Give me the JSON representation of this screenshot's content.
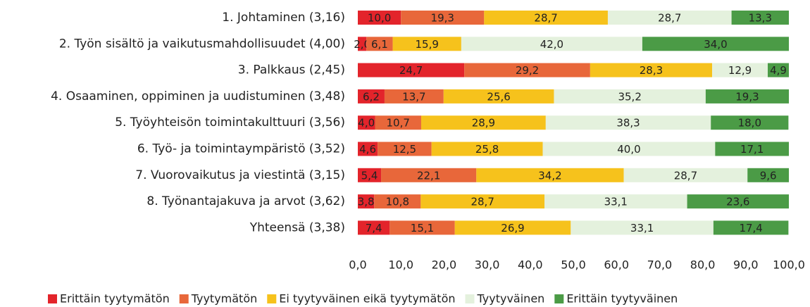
{
  "chart_data": {
    "type": "stacked-bar-horizontal",
    "categories": [
      "1. Johtaminen (3,16)",
      "2. Työn sisältö ja vaikutusmahdollisuudet (4,00)",
      "3. Palkkaus (2,45)",
      "4. Osaaminen, oppiminen ja uudistuminen (3,48)",
      "5. Työyhteisön toimintakulttuuri (3,56)",
      "6. Työ- ja toimintaympäristö (3,52)",
      "7. Vuorovaikutus ja viestintä (3,15)",
      "8. Työnantajakuva ja arvot (3,62)",
      "Yhteensä (3,38)"
    ],
    "series": [
      {
        "name": "Erittäin tyytymätön",
        "color": "#e3242b",
        "values": [
          10.0,
          2.0,
          24.7,
          6.2,
          4.0,
          4.6,
          5.4,
          3.8,
          7.4
        ],
        "value_labels": [
          "10,0",
          "2,0",
          "24,7",
          "6,2",
          "4,0",
          "4,6",
          "5,4",
          "3,8",
          "7,4"
        ]
      },
      {
        "name": "Tyytymätön",
        "color": "#e8673a",
        "values": [
          19.3,
          6.1,
          29.2,
          13.7,
          10.7,
          12.5,
          22.1,
          10.8,
          15.1
        ],
        "value_labels": [
          "19,3",
          "6,1",
          "29,2",
          "13,7",
          "10,7",
          "12,5",
          "22,1",
          "10,8",
          "15,1"
        ]
      },
      {
        "name": "Ei tyytyväinen eikä tyytymätön",
        "color": "#f6c21c",
        "values": [
          28.7,
          15.9,
          28.3,
          25.6,
          28.9,
          25.8,
          34.2,
          28.7,
          26.9
        ],
        "value_labels": [
          "28,7",
          "15,9",
          "28,3",
          "25,6",
          "28,9",
          "25,8",
          "34,2",
          "28,7",
          "26,9"
        ]
      },
      {
        "name": "Tyytyväinen",
        "color": "#e4f1dd",
        "values": [
          28.7,
          42.0,
          12.9,
          35.2,
          38.3,
          40.0,
          28.7,
          33.1,
          33.1
        ],
        "value_labels": [
          "28,7",
          "42,0",
          "12,9",
          "35,2",
          "38,3",
          "40,0",
          "28,7",
          "33,1",
          "33,1"
        ]
      },
      {
        "name": "Erittäin tyytyväinen",
        "color": "#4b9b46",
        "values": [
          13.3,
          34.0,
          4.9,
          19.3,
          18.0,
          17.1,
          9.6,
          23.6,
          17.4
        ],
        "value_labels": [
          "13,3",
          "34,0",
          "4,9",
          "19,3",
          "18,0",
          "17,1",
          "9,6",
          "23,6",
          "17,4"
        ]
      }
    ],
    "xlim": [
      0,
      100
    ],
    "xticks": [
      {
        "value": 0,
        "label": "0,0"
      },
      {
        "value": 10,
        "label": "10,0"
      },
      {
        "value": 20,
        "label": "20,0"
      },
      {
        "value": 30,
        "label": "30,0"
      },
      {
        "value": 40,
        "label": "40,0"
      },
      {
        "value": 50,
        "label": "50,0"
      },
      {
        "value": 60,
        "label": "60,0"
      },
      {
        "value": 70,
        "label": "70,0"
      },
      {
        "value": 80,
        "label": "80,0"
      },
      {
        "value": 90,
        "label": "90,0"
      },
      {
        "value": 100,
        "label": "100,0"
      }
    ],
    "legend": "bottom"
  }
}
